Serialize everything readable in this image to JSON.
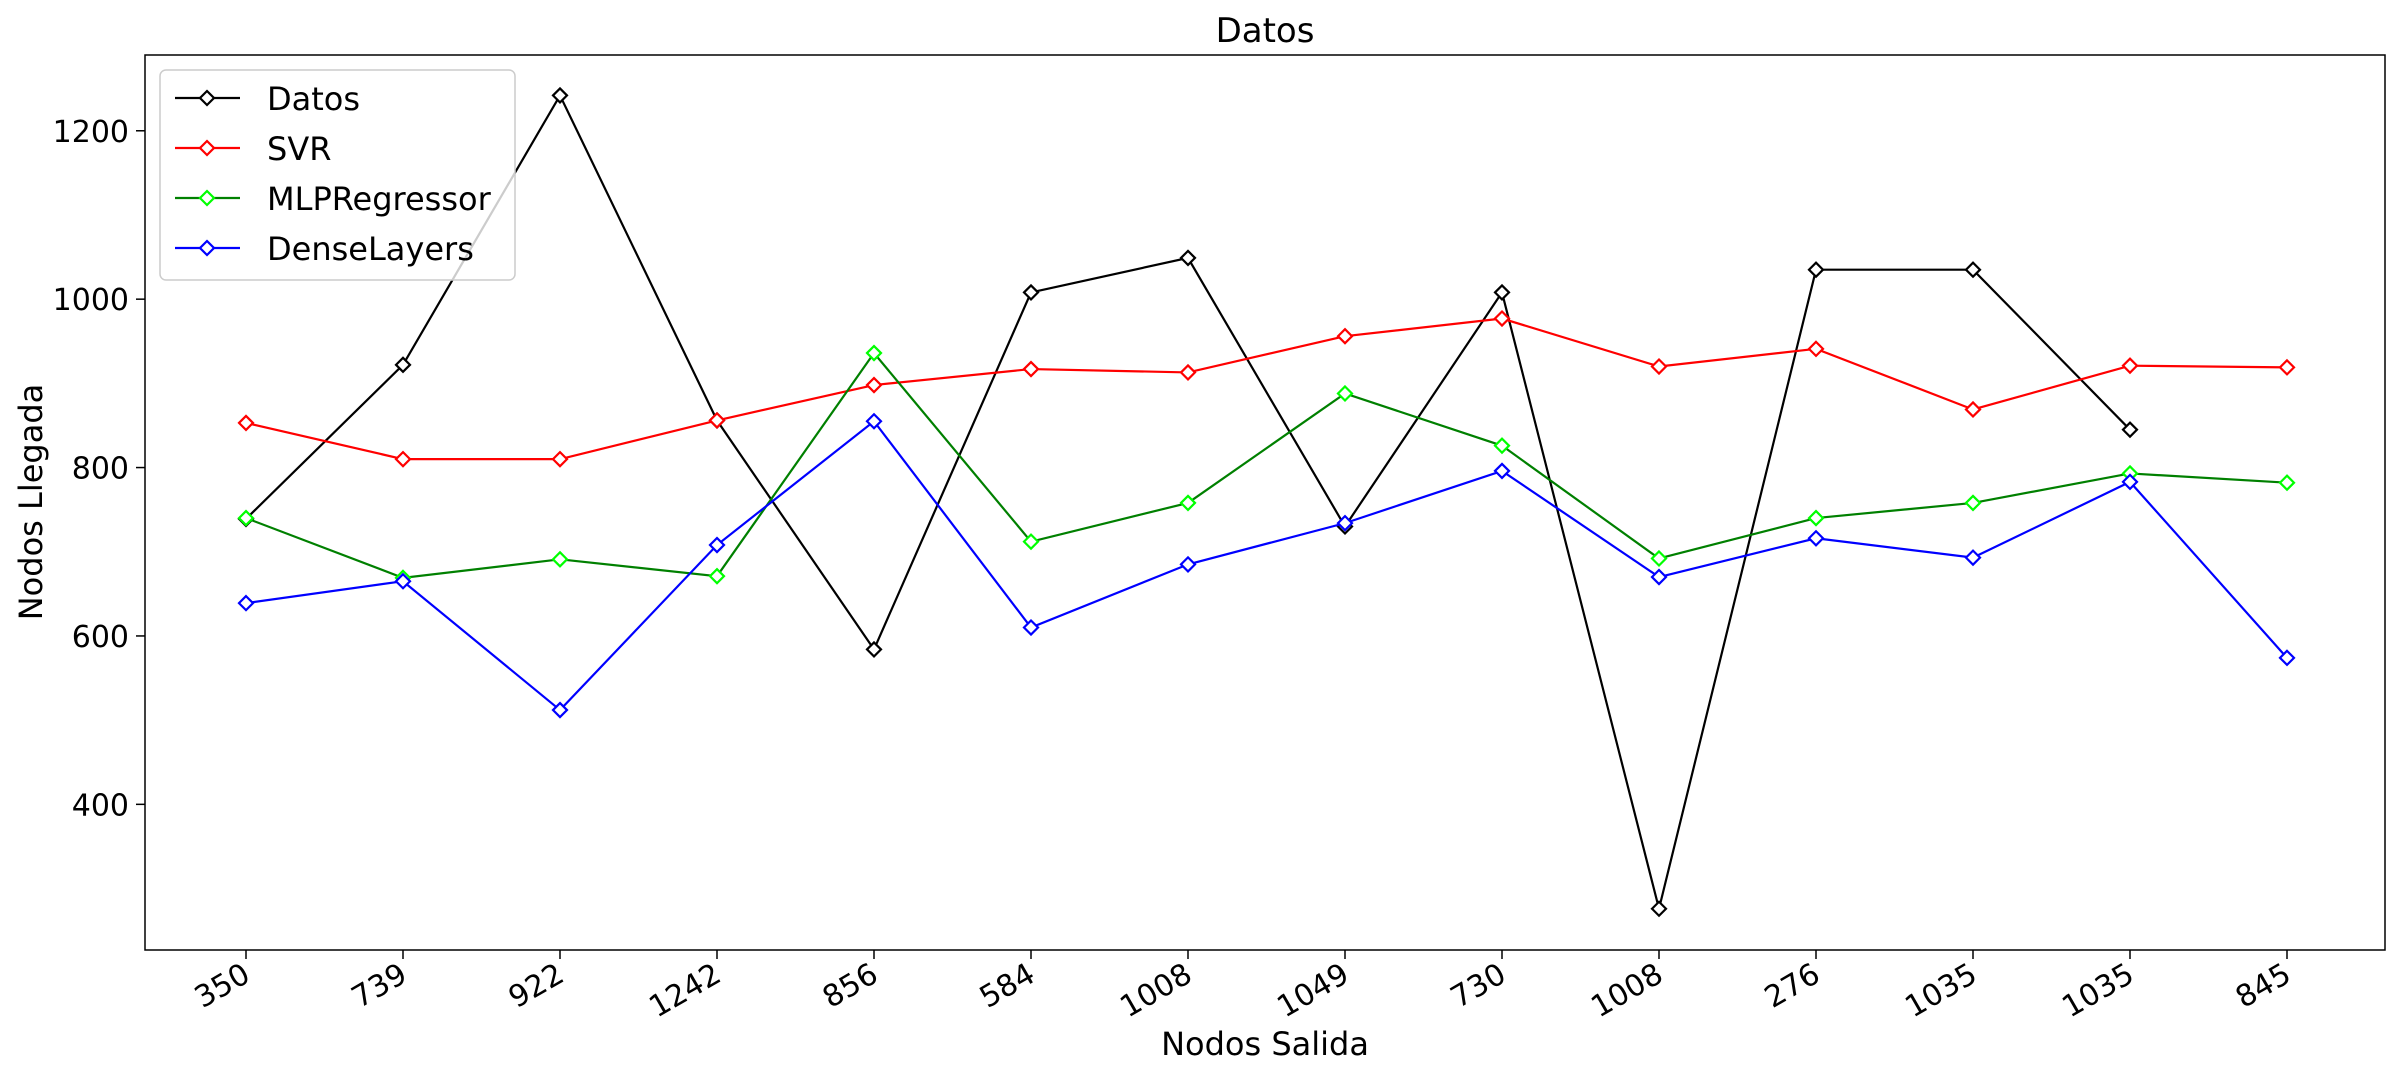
{
  "chart_data": {
    "type": "line",
    "title": "Datos",
    "xlabel": "Nodos Salida",
    "ylabel": "Nodos Llegada",
    "categories": [
      "350",
      "739",
      "922",
      "1242",
      "856",
      "584",
      "1008",
      "1049",
      "730",
      "1008",
      "276",
      "1035",
      "1035",
      "845"
    ],
    "yticks": [
      400,
      600,
      800,
      1000,
      1200
    ],
    "ylim": [
      227,
      1290
    ],
    "grid": false,
    "legend_position": "top-left",
    "marker": "diamond",
    "series": [
      {
        "name": "Datos",
        "color": "#000000",
        "marker_color": "#000000",
        "values": [
          739,
          922,
          1242,
          856,
          584,
          1008,
          1049,
          730,
          1008,
          276,
          1035,
          1035,
          845,
          null
        ]
      },
      {
        "name": "SVR",
        "color": "#ff0000",
        "marker_color": "#ff0000",
        "values": [
          853,
          810,
          810,
          856,
          898,
          917,
          913,
          956,
          977,
          920,
          941,
          869,
          921,
          919
        ]
      },
      {
        "name": "MLPRegressor",
        "color": "#008000",
        "marker_color": "#00ff00",
        "values": [
          740,
          669,
          691,
          671,
          936,
          712,
          758,
          888,
          826,
          692,
          740,
          758,
          793,
          782
        ]
      },
      {
        "name": "DenseLayers",
        "color": "#0000ff",
        "marker_color": "#0000ff",
        "values": [
          639,
          665,
          512,
          708,
          855,
          610,
          685,
          734,
          796,
          670,
          716,
          693,
          783,
          574
        ]
      }
    ]
  }
}
